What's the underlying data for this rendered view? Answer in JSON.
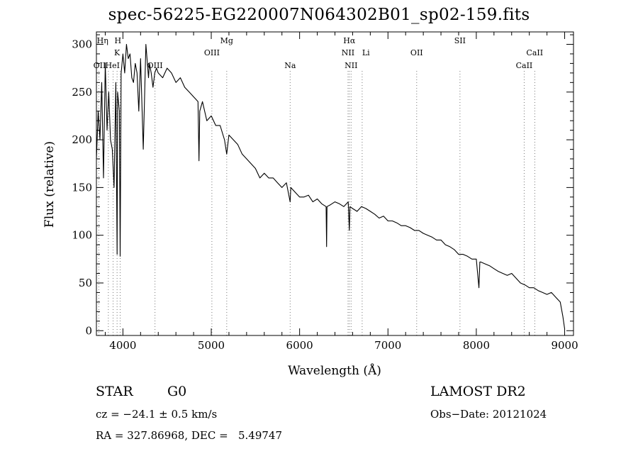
{
  "chart_data": {
    "type": "line",
    "title": "spec-56225-EG220007N064302B01_sp02-159.fits",
    "xlabel": "Wavelength (Å)",
    "ylabel": "Flux (relative)",
    "xlim": [
      3700,
      9100
    ],
    "ylim": [
      -5,
      313
    ],
    "x_ticks": [
      4000,
      5000,
      6000,
      7000,
      8000,
      9000
    ],
    "y_ticks": [
      0,
      50,
      100,
      150,
      200,
      250,
      300
    ],
    "grid": false,
    "series": [
      {
        "x": [
          3700,
          3720,
          3740,
          3760,
          3780,
          3800,
          3820,
          3840,
          3860,
          3880,
          3900,
          3920,
          3934,
          3940,
          3960,
          3969,
          3980,
          4000,
          4020,
          4040,
          4060,
          4080,
          4100,
          4120,
          4140,
          4160,
          4180,
          4200,
          4230,
          4260,
          4290,
          4300,
          4320,
          4340,
          4360,
          4380,
          4400,
          4450,
          4500,
          4550,
          4600,
          4650,
          4700,
          4750,
          4800,
          4850,
          4861,
          4870,
          4900,
          4950,
          5000,
          5050,
          5100,
          5150,
          5175,
          5200,
          5250,
          5300,
          5350,
          5400,
          5450,
          5500,
          5550,
          5600,
          5650,
          5700,
          5750,
          5800,
          5850,
          5893,
          5900,
          5950,
          6000,
          6050,
          6100,
          6150,
          6200,
          6250,
          6300,
          6305,
          6310,
          6350,
          6400,
          6450,
          6500,
          6550,
          6563,
          6570,
          6600,
          6650,
          6700,
          6750,
          6800,
          6850,
          6900,
          6950,
          7000,
          7050,
          7100,
          7150,
          7200,
          7250,
          7300,
          7350,
          7400,
          7450,
          7500,
          7550,
          7600,
          7650,
          7700,
          7750,
          7800,
          7850,
          7900,
          7950,
          8000,
          8030,
          8040,
          8050,
          8100,
          8150,
          8200,
          8250,
          8300,
          8350,
          8400,
          8450,
          8500,
          8550,
          8600,
          8650,
          8700,
          8750,
          8800,
          8850,
          8900,
          8950,
          8980,
          9000
        ],
        "y": [
          180,
          230,
          200,
          260,
          160,
          280,
          210,
          250,
          200,
          190,
          150,
          260,
          80,
          250,
          230,
          78,
          270,
          290,
          270,
          300,
          285,
          290,
          265,
          260,
          280,
          270,
          230,
          285,
          190,
          300,
          265,
          280,
          270,
          255,
          270,
          275,
          270,
          265,
          275,
          270,
          260,
          265,
          255,
          250,
          245,
          240,
          178,
          230,
          240,
          220,
          225,
          215,
          215,
          200,
          185,
          205,
          200,
          195,
          185,
          180,
          175,
          170,
          160,
          165,
          160,
          160,
          155,
          150,
          155,
          135,
          150,
          145,
          140,
          140,
          142,
          135,
          138,
          133,
          130,
          88,
          130,
          132,
          135,
          133,
          130,
          135,
          105,
          130,
          128,
          125,
          130,
          128,
          125,
          122,
          118,
          120,
          115,
          115,
          113,
          110,
          110,
          108,
          105,
          105,
          102,
          100,
          98,
          95,
          95,
          90,
          88,
          85,
          80,
          80,
          78,
          75,
          75,
          45,
          72,
          72,
          70,
          68,
          65,
          62,
          60,
          58,
          60,
          55,
          50,
          48,
          45,
          45,
          42,
          40,
          38,
          40,
          35,
          30,
          15,
          2
        ]
      }
    ],
    "line_markers": [
      {
        "label": "Hη",
        "wavelength": 3835
      },
      {
        "label": "H",
        "wavelength": 3969
      },
      {
        "label": "K",
        "wavelength": 3934
      },
      {
        "label": "OII",
        "wavelength": 3727
      },
      {
        "label": "HeI",
        "wavelength": 3889
      },
      {
        "label": "OIII",
        "wavelength": 4363
      },
      {
        "label": "OIII",
        "wavelength": 5007
      },
      {
        "label": "Mg",
        "wavelength": 5175
      },
      {
        "label": "Na",
        "wavelength": 5893
      },
      {
        "label": "Hα",
        "wavelength": 6563
      },
      {
        "label": "NII",
        "wavelength": 6548
      },
      {
        "label": "Li",
        "wavelength": 6708
      },
      {
        "label": "NII",
        "wavelength": 6583
      },
      {
        "label": "OII",
        "wavelength": 7325
      },
      {
        "label": "SII",
        "wavelength": 7815
      },
      {
        "label": "CaII",
        "wavelength": 8662
      },
      {
        "label": "CaII",
        "wavelength": 8542
      }
    ]
  },
  "info": {
    "class": "STAR",
    "subclass": "G0",
    "survey": "LAMOST DR2",
    "cz": "cz = −24.1 ± 0.5 km/s",
    "obs_date": "Obs−Date: 20121024",
    "coords": "RA = 327.86968, DEC =   5.49747"
  }
}
